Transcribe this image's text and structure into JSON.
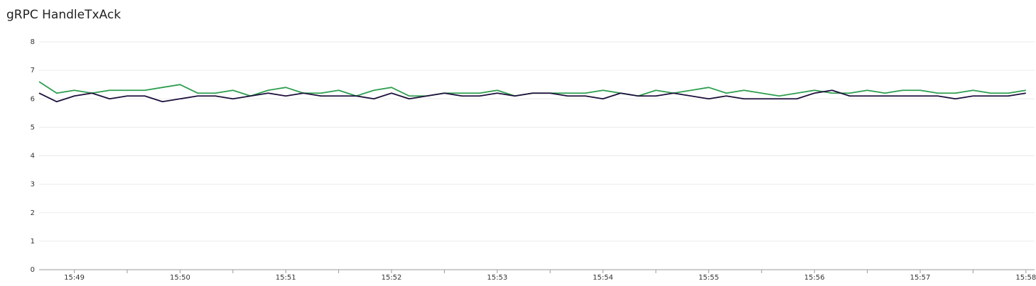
{
  "chart_data": {
    "type": "line",
    "title": "gRPC HandleTxAck",
    "categories": [
      null,
      null,
      "15:49",
      null,
      null,
      null,
      null,
      null,
      "15:50",
      null,
      null,
      null,
      null,
      null,
      "15:51",
      null,
      null,
      null,
      null,
      null,
      "15:52",
      null,
      null,
      null,
      null,
      null,
      "15:53",
      null,
      null,
      null,
      null,
      null,
      "15:54",
      null,
      null,
      null,
      null,
      null,
      "15:55",
      null,
      null,
      null,
      null,
      null,
      "15:56",
      null,
      null,
      null,
      null,
      null,
      "15:57",
      null,
      null,
      null,
      null,
      null,
      "15:58"
    ],
    "series": [
      {
        "color": "#2e9e4f",
        "values": [
          6.6,
          6.2,
          6.3,
          6.2,
          6.3,
          6.3,
          6.3,
          6.4,
          6.5,
          6.2,
          6.2,
          6.3,
          6.1,
          6.3,
          6.4,
          6.2,
          6.2,
          6.3,
          6.1,
          6.3,
          6.4,
          6.1,
          6.1,
          6.2,
          6.2,
          6.2,
          6.3,
          6.1,
          6.2,
          6.2,
          6.2,
          6.2,
          6.3,
          6.2,
          6.1,
          6.3,
          6.2,
          6.3,
          6.4,
          6.2,
          6.3,
          6.2,
          6.1,
          6.2,
          6.3,
          6.2,
          6.2,
          6.3,
          6.2,
          6.3,
          6.3,
          6.2,
          6.2,
          6.3,
          6.2,
          6.2,
          6.3
        ]
      },
      {
        "color": "#1e0f3c",
        "values": [
          6.2,
          5.9,
          6.1,
          6.2,
          6.0,
          6.1,
          6.1,
          5.9,
          6.0,
          6.1,
          6.1,
          6.0,
          6.1,
          6.2,
          6.1,
          6.2,
          6.1,
          6.1,
          6.1,
          6.0,
          6.2,
          6.0,
          6.1,
          6.2,
          6.1,
          6.1,
          6.2,
          6.1,
          6.2,
          6.2,
          6.1,
          6.1,
          6.0,
          6.2,
          6.1,
          6.1,
          6.2,
          6.1,
          6.0,
          6.1,
          6.0,
          6.0,
          6.0,
          6.0,
          6.2,
          6.3,
          6.1,
          6.1,
          6.1,
          6.1,
          6.1,
          6.1,
          6.0,
          6.1,
          6.1,
          6.1,
          6.2
        ]
      }
    ],
    "ylim": [
      0,
      8
    ],
    "yticks": [
      0,
      1,
      2,
      3,
      4,
      5,
      6,
      7,
      8
    ],
    "grid": true
  }
}
